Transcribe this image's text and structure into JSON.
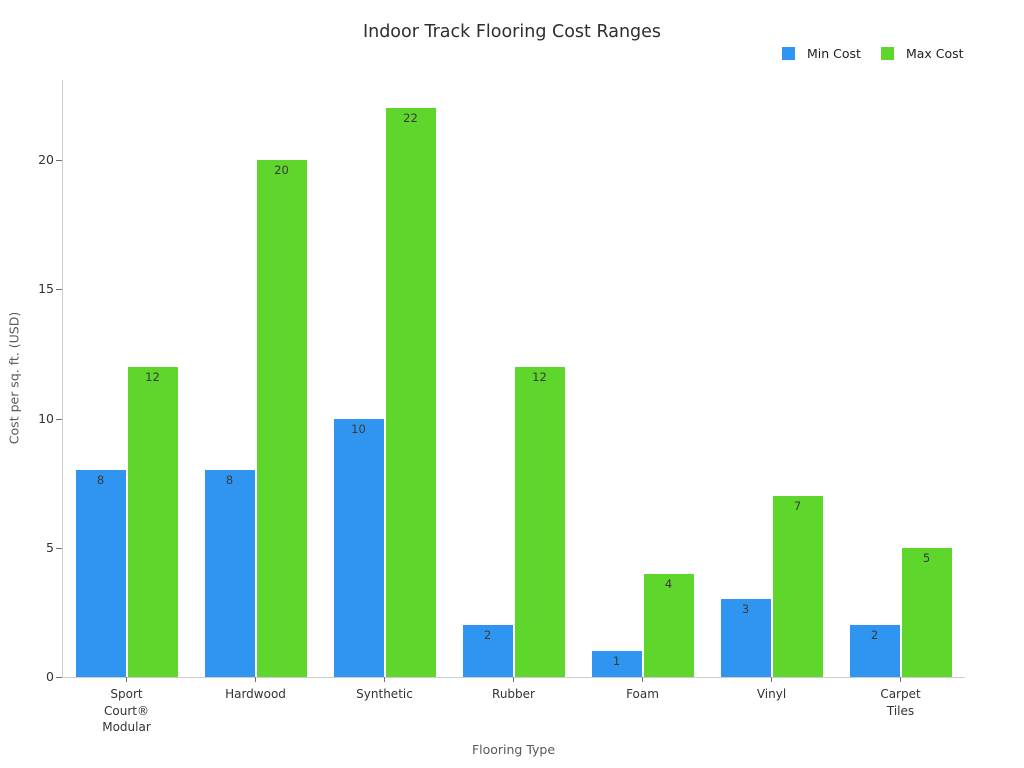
{
  "title": "Indoor Track Flooring Cost Ranges",
  "legend": {
    "items": [
      {
        "label": "Min Cost",
        "color": "#3095f0"
      },
      {
        "label": "Max Cost",
        "color": "#5ed62c"
      }
    ]
  },
  "axes": {
    "xlabel": "Flooring Type",
    "ylabel": "Cost per sq. ft. (USD)"
  },
  "chart_data": {
    "type": "bar",
    "title": "Indoor Track Flooring Cost Ranges",
    "xlabel": "Flooring Type",
    "ylabel": "Cost per sq. ft. (USD)",
    "categories": [
      "Sport\nCourt®\nModular",
      "Hardwood",
      "Synthetic",
      "Rubber",
      "Foam",
      "Vinyl",
      "Carpet\nTiles"
    ],
    "series": [
      {
        "name": "Min Cost",
        "color": "#3095f0",
        "values": [
          8,
          8,
          10,
          2,
          1,
          3,
          2
        ]
      },
      {
        "name": "Max Cost",
        "color": "#5ed62c",
        "values": [
          12,
          20,
          22,
          12,
          4,
          7,
          5
        ]
      }
    ],
    "bar_value_labels": [
      {
        "series": "Min Cost",
        "labels": [
          "8",
          "8",
          "10",
          "2",
          "1",
          "3",
          "2"
        ]
      },
      {
        "series": "Max Cost",
        "labels": [
          "12",
          "20",
          "22",
          "12",
          "4",
          "7",
          "5"
        ]
      }
    ],
    "yticks": [
      0,
      5,
      10,
      15,
      20
    ],
    "ylim": [
      0,
      23.1
    ],
    "grid": false,
    "legend_position": "top-right",
    "background": "#ffffff",
    "value_label_color": "#3a3a3a",
    "tick_label_color": "#333333",
    "axis_title_color": "#595959",
    "spine_color": "#cccccc"
  }
}
